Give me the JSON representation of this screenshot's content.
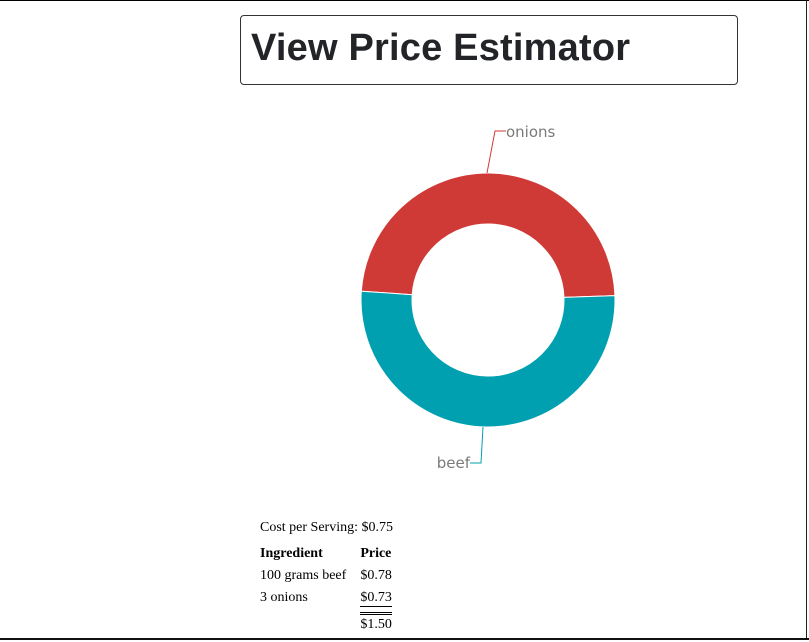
{
  "page": {
    "title": "View Price Estimator"
  },
  "chart_data": {
    "type": "pie",
    "donut": true,
    "slices": [
      {
        "label": "onions",
        "value": 0.73,
        "color": "#d03a36"
      },
      {
        "label": "beef",
        "value": 0.78,
        "color": "#00a0b0"
      }
    ]
  },
  "summary": {
    "cost_per_serving_label": "Cost per Serving:",
    "cost_per_serving_value": "$0.75"
  },
  "table": {
    "headers": [
      "Ingredient",
      "Price"
    ],
    "rows": [
      {
        "ingredient": "100 grams beef",
        "price": "$0.78"
      },
      {
        "ingredient": "3 onions",
        "price": "$0.73"
      }
    ],
    "total": "$1.50"
  }
}
